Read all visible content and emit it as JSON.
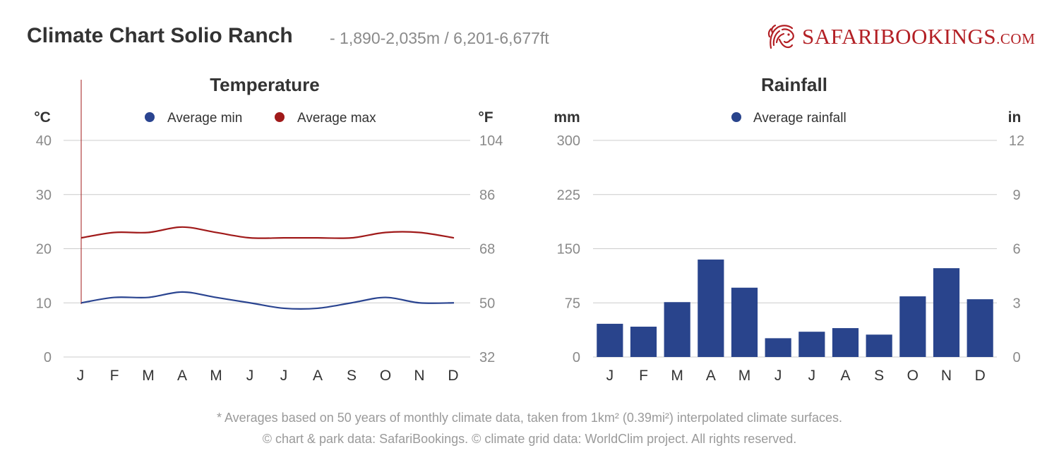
{
  "header": {
    "title": "Climate Chart Solio Ranch",
    "subtitle": "- 1,890-2,035m / 6,201-6,677ft"
  },
  "logo": {
    "text_safari": "SAFARI",
    "text_bookings": "BOOKINGS",
    "text_com": ".COM",
    "icon": "lion-head-icon",
    "color": "#b32025"
  },
  "chart_data": [
    {
      "type": "line",
      "title": "Temperature",
      "y_left_unit": "°C",
      "y_right_unit": "°F",
      "categories": [
        "J",
        "F",
        "M",
        "A",
        "M",
        "J",
        "J",
        "A",
        "S",
        "O",
        "N",
        "D"
      ],
      "y_left_ticks": [
        "0",
        "10",
        "20",
        "30",
        "40"
      ],
      "y_right_ticks": [
        "32",
        "50",
        "68",
        "86",
        "104"
      ],
      "ylim": [
        0,
        40
      ],
      "grid": true,
      "legend_placement": "top-center",
      "series": [
        {
          "name": "Average min",
          "color": "#2a4490",
          "values": [
            10,
            11,
            11,
            12,
            11,
            10,
            9,
            9,
            10,
            11,
            10,
            10
          ]
        },
        {
          "name": "Average max",
          "color": "#a01a1a",
          "values": [
            22,
            23,
            23,
            24,
            23,
            22,
            22,
            22,
            22,
            23,
            23,
            22
          ]
        }
      ]
    },
    {
      "type": "bar",
      "title": "Rainfall",
      "y_left_unit": "mm",
      "y_right_unit": "in",
      "categories": [
        "J",
        "F",
        "M",
        "A",
        "M",
        "J",
        "J",
        "A",
        "S",
        "O",
        "N",
        "D"
      ],
      "y_left_ticks": [
        "0",
        "75",
        "150",
        "225",
        "300"
      ],
      "y_right_ticks": [
        "0",
        "3",
        "6",
        "9",
        "12"
      ],
      "ylim": [
        0,
        300
      ],
      "grid": true,
      "legend_placement": "top-center",
      "series": [
        {
          "name": "Average rainfall",
          "color": "#29448c",
          "values": [
            46,
            42,
            76,
            135,
            96,
            26,
            35,
            40,
            31,
            84,
            123,
            80
          ]
        }
      ]
    }
  ],
  "footer": {
    "line1": "* Averages based on 50 years of monthly climate data, taken from 1km² (0.39mi²) interpolated climate surfaces.",
    "line2": "© chart & park data: SafariBookings. © climate grid data: WorldClim project. All rights reserved."
  }
}
